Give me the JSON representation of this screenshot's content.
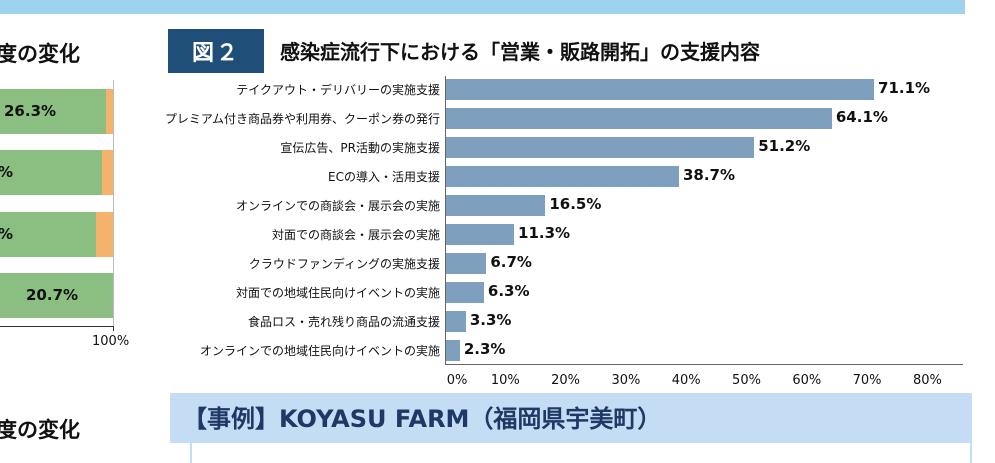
{
  "left_panel": {
    "title_top": "度の変化",
    "title_bottom": "度の変化",
    "bar_labels": [
      "26.3%",
      "%",
      "%",
      "20.7%"
    ],
    "axis_label": "100%",
    "colors": {
      "green": "#8bbf82",
      "orange": "#f4b26c"
    }
  },
  "figure": {
    "badge": "図２",
    "title": "感染症流行下における「営業・販路開拓」の支援内容"
  },
  "chart_data": {
    "type": "bar",
    "orientation": "horizontal",
    "categories": [
      "テイクアウト・デリバリーの実施支援",
      "プレミアム付き商品券や利用券、クーポン券の発行",
      "宣伝広告、PR活動の実施支援",
      "ECの導入・活用支援",
      "オンラインでの商談会・展示会の実施",
      "対面での商談会・展示会の実施",
      "クラウドファンディングの実施支援",
      "対面での地域住民向けイベントの実施",
      "食品ロス・売れ残り商品の流通支援",
      "オンラインでの地域住民向けイベントの実施"
    ],
    "values": [
      71.1,
      64.1,
      51.2,
      38.7,
      16.5,
      11.3,
      6.7,
      6.3,
      3.3,
      2.3
    ],
    "data_labels": [
      "71.1%",
      "64.1%",
      "51.2%",
      "38.7%",
      "16.5%",
      "11.3%",
      "6.7%",
      "6.3%",
      "3.3%",
      "2.3%"
    ],
    "xlim": [
      0,
      80
    ],
    "tick_labels": [
      "0%",
      "10%",
      "20%",
      "30%",
      "40%",
      "50%",
      "60%",
      "70%",
      "80%"
    ],
    "grid": false,
    "bar_color": "#7f9fbf"
  },
  "case": {
    "title": "【事例】KOYASU FARM（福岡県宇美町）"
  }
}
